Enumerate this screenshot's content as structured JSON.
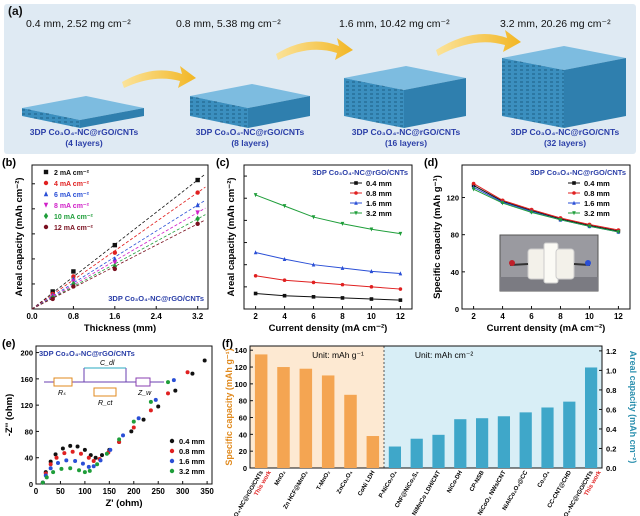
{
  "panel_a": {
    "letter": "(a)",
    "conditions": [
      "0.4 mm, 2.52 mg cm⁻²",
      "0.8 mm, 5.38 mg cm⁻²",
      "1.6 mm, 10.42 mg cm⁻²",
      "3.2 mm, 20.26 mg cm⁻²"
    ],
    "sample_name": "3DP Co₃O₄-NC@rGO/CNTs",
    "layers": [
      "(4 layers)",
      "(8 layers)",
      "(16 layers)",
      "(32 layers)"
    ],
    "colors": {
      "background": "#dfeaf3",
      "lattice": "#3b8fbf",
      "arrow": "#f5c33b"
    }
  },
  "chart_data": [
    {
      "id": "b",
      "letter": "(b)",
      "type": "scatter",
      "xlabel": "Thickness (mm)",
      "ylabel": "Areal capacity (mAh cm⁻²)",
      "xticks": [
        "0.0",
        "0.8",
        "1.6",
        "2.4",
        "3.2"
      ],
      "xlim": [
        0,
        3.4
      ],
      "ylim": [
        0,
        1.15
      ],
      "annotation": "3DP Co₃O₄-NC@rGO/CNTs",
      "x": [
        0.4,
        0.8,
        1.6,
        3.2
      ],
      "series": [
        {
          "name": "2 mA cm⁻²",
          "color": "#111111",
          "marker": "square",
          "values": [
            0.14,
            0.3,
            0.51,
            1.03
          ]
        },
        {
          "name": "4 mA cm⁻²",
          "color": "#e02020",
          "marker": "circle",
          "values": [
            0.12,
            0.26,
            0.45,
            0.93
          ]
        },
        {
          "name": "6 mA cm⁻²",
          "color": "#2a4fd6",
          "marker": "triangle",
          "values": [
            0.11,
            0.24,
            0.4,
            0.83
          ]
        },
        {
          "name": "8 mA cm⁻²",
          "color": "#d020c8",
          "marker": "triangle-down",
          "values": [
            0.1,
            0.22,
            0.37,
            0.77
          ]
        },
        {
          "name": "10 mA cm⁻²",
          "color": "#1f9e3a",
          "marker": "diamond",
          "values": [
            0.09,
            0.2,
            0.34,
            0.72
          ]
        },
        {
          "name": "12 mA cm⁻²",
          "color": "#7a1020",
          "marker": "circle",
          "values": [
            0.08,
            0.18,
            0.32,
            0.68
          ]
        }
      ]
    },
    {
      "id": "c",
      "letter": "(c)",
      "type": "line",
      "xlabel": "Current density (mA cm⁻²)",
      "ylabel": "Areal capacity (mAh cm⁻²)",
      "xticks": [
        2,
        4,
        6,
        8,
        10,
        12
      ],
      "xlim": [
        1.2,
        12.8
      ],
      "ylim": [
        0,
        1.3
      ],
      "annotation": "3DP Co₃O₄-NC@rGO/CNTs",
      "x": [
        2,
        4,
        6,
        8,
        10,
        12
      ],
      "series": [
        {
          "name": "0.4 mm",
          "color": "#111111",
          "marker": "square",
          "values": [
            0.14,
            0.12,
            0.11,
            0.1,
            0.09,
            0.08
          ]
        },
        {
          "name": "0.8 mm",
          "color": "#e02020",
          "marker": "circle",
          "values": [
            0.3,
            0.26,
            0.24,
            0.22,
            0.2,
            0.18
          ]
        },
        {
          "name": "1.6 mm",
          "color": "#2a4fd6",
          "marker": "triangle",
          "values": [
            0.51,
            0.45,
            0.4,
            0.37,
            0.34,
            0.32
          ]
        },
        {
          "name": "3.2 mm",
          "color": "#1f9e3a",
          "marker": "triangle-down",
          "values": [
            1.03,
            0.93,
            0.83,
            0.77,
            0.72,
            0.68
          ]
        }
      ]
    },
    {
      "id": "d",
      "letter": "(d)",
      "type": "line",
      "xlabel": "Current density (mA cm⁻²)",
      "ylabel": "Specific capacity (mAh g⁻¹)",
      "xticks": [
        2,
        4,
        6,
        8,
        10,
        12
      ],
      "yticks": [
        0,
        40,
        80,
        120
      ],
      "xlim": [
        1.2,
        12.8
      ],
      "ylim": [
        0,
        155
      ],
      "annotation": "3DP Co₃O₄-NC@rGO/CNTs",
      "x": [
        2,
        4,
        6,
        8,
        10,
        12
      ],
      "series": [
        {
          "name": "0.4 mm",
          "color": "#111111",
          "marker": "square",
          "values": [
            133,
            116,
            106,
            97,
            90,
            84
          ]
        },
        {
          "name": "0.8 mm",
          "color": "#e02020",
          "marker": "circle",
          "values": [
            135,
            117,
            107,
            98,
            91,
            85
          ]
        },
        {
          "name": "1.6 mm",
          "color": "#2a4fd6",
          "marker": "triangle",
          "values": [
            131,
            115,
            105,
            96,
            89,
            83
          ]
        },
        {
          "name": "3.2 mm",
          "color": "#1f9e3a",
          "marker": "triangle-down",
          "values": [
            129,
            114,
            104,
            96,
            89,
            83
          ]
        }
      ]
    },
    {
      "id": "e",
      "letter": "(e)",
      "type": "scatter",
      "xlabel": "Z' (ohm)",
      "ylabel": "-Z'' (ohm)",
      "xticks": [
        0,
        50,
        100,
        150,
        200,
        250,
        300,
        350
      ],
      "yticks": [
        0,
        40,
        80,
        120,
        160,
        200
      ],
      "xlim": [
        0,
        360
      ],
      "ylim": [
        0,
        210
      ],
      "annotation": "3DP Co₃O₄-NC@rGO/CNTs",
      "circuit_labels": [
        "Rₛ",
        "C_dl",
        "R_ct",
        "Z_w"
      ],
      "series": [
        {
          "name": "0.4 mm",
          "color": "#111111",
          "x": [
            14,
            20,
            30,
            40,
            55,
            70,
            85,
            100,
            112,
            122,
            135,
            150,
            170,
            195,
            220,
            250,
            285,
            320,
            345
          ],
          "y": [
            2,
            18,
            34,
            45,
            54,
            58,
            57,
            52,
            44,
            40,
            44,
            52,
            64,
            80,
            98,
            118,
            142,
            168,
            188
          ]
        },
        {
          "name": "0.8 mm",
          "color": "#e02020",
          "x": [
            14,
            20,
            30,
            42,
            58,
            75,
            92,
            108,
            118,
            130,
            148,
            170,
            200,
            235,
            270,
            310
          ],
          "y": [
            2,
            16,
            30,
            40,
            47,
            49,
            46,
            40,
            35,
            38,
            48,
            64,
            86,
            112,
            138,
            170
          ]
        },
        {
          "name": "1.6 mm",
          "color": "#2a4fd6",
          "x": [
            14,
            20,
            30,
            45,
            62,
            80,
            96,
            108,
            118,
            132,
            152,
            178,
            210,
            245,
            282
          ],
          "y": [
            2,
            13,
            24,
            32,
            36,
            35,
            31,
            26,
            27,
            36,
            52,
            74,
            100,
            128,
            158
          ]
        },
        {
          "name": "3.2 mm",
          "color": "#1f9e3a",
          "x": [
            14,
            22,
            35,
            52,
            70,
            88,
            100,
            110,
            125,
            145,
            170,
            200,
            235,
            270
          ],
          "y": [
            2,
            10,
            18,
            23,
            24,
            21,
            18,
            20,
            30,
            46,
            68,
            95,
            125,
            155
          ]
        }
      ]
    },
    {
      "id": "f",
      "letter": "(f)",
      "type": "bar",
      "ylabel_left": "Specific capacity (mAh g⁻¹)",
      "ylabel_right": "Areal capacity (mAh cm⁻²)",
      "unit_left": "Unit: mAh g⁻¹",
      "unit_right": "Unit: mAh cm⁻²",
      "yticks_left": [
        0,
        20,
        40,
        60,
        80,
        100,
        120,
        140
      ],
      "ylim_left": [
        0,
        145
      ],
      "yticks_right": [
        "0.0",
        "0.2",
        "0.4",
        "0.6",
        "0.8",
        "1.0",
        "1.2"
      ],
      "ylim_right": [
        0,
        1.25
      ],
      "highlight_label": "This work",
      "left_bars": [
        {
          "label": "3DP Co₃O₄-NC@rGO/CNTs",
          "value": 135,
          "highlight": true
        },
        {
          "label": "MnO₂",
          "value": 120
        },
        {
          "label": "Zn HCF@MnO₂",
          "value": 118
        },
        {
          "label": "T-MnO₂",
          "value": 110
        },
        {
          "label": "ZnCo₂O₄",
          "value": 87
        },
        {
          "label": "CoNi LDH",
          "value": 38
        }
      ],
      "right_bars": [
        {
          "label": "P-NiCo₂O₄",
          "value": 0.22
        },
        {
          "label": "CNF@NiCo₂S₄",
          "value": 0.3
        },
        {
          "label": "NiMnCo LDH/CNT",
          "value": 0.34
        },
        {
          "label": "NiCo-DH",
          "value": 0.5
        },
        {
          "label": "CP-NSB",
          "value": 0.51
        },
        {
          "label": "NiCoO₂ NWs/CNT",
          "value": 0.53
        },
        {
          "label": "NiAlCo₂O₄@CC",
          "value": 0.57
        },
        {
          "label": "Co₃O₄",
          "value": 0.62
        },
        {
          "label": "CC-CNT@CHD",
          "value": 0.68
        },
        {
          "label": "3DP Co₃O₄-NC@rGO/CNTs",
          "value": 1.03,
          "highlight": true
        }
      ],
      "colors": {
        "left": "#f4a552",
        "left_bg": "#fde9d2",
        "right": "#3fa7c9",
        "right_bg": "#d8eef6",
        "highlight_text": "#e02020"
      }
    }
  ]
}
